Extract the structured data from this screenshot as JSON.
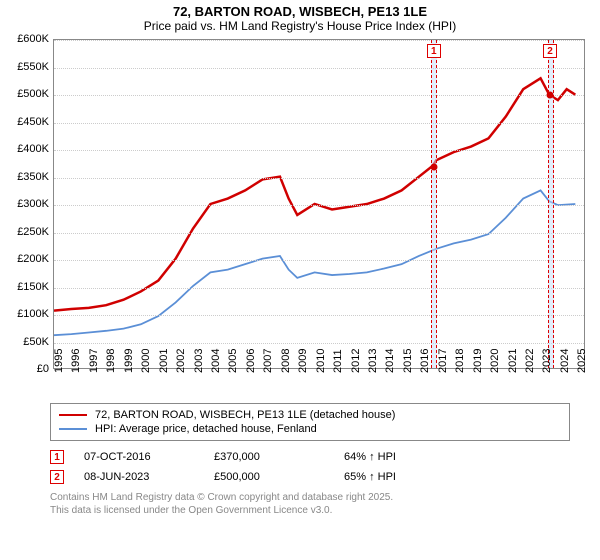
{
  "title": "72, BARTON ROAD, WISBECH, PE13 1LE",
  "subtitle": "Price paid vs. HM Land Registry's House Price Index (HPI)",
  "chart": {
    "type": "line",
    "ylim": [
      0,
      600000
    ],
    "ytick_step": 50000,
    "yticks": [
      "£0",
      "£50K",
      "£100K",
      "£150K",
      "£200K",
      "£250K",
      "£300K",
      "£350K",
      "£400K",
      "£450K",
      "£500K",
      "£550K",
      "£600K"
    ],
    "xlim": [
      1995,
      2025.5
    ],
    "xticks": [
      1995,
      1996,
      1997,
      1998,
      1999,
      2000,
      2001,
      2002,
      2003,
      2004,
      2005,
      2006,
      2007,
      2008,
      2009,
      2010,
      2011,
      2012,
      2013,
      2014,
      2015,
      2016,
      2017,
      2018,
      2019,
      2020,
      2021,
      2022,
      2023,
      2024,
      2025
    ],
    "grid_color": "#cccccc",
    "background_color": "#ffffff",
    "series": [
      {
        "name": "72, BARTON ROAD, WISBECH, PE13 1LE (detached house)",
        "color": "#d00000",
        "width": 2.5,
        "data": [
          [
            1995,
            105000
          ],
          [
            1996,
            108000
          ],
          [
            1997,
            110000
          ],
          [
            1998,
            115000
          ],
          [
            1999,
            125000
          ],
          [
            2000,
            140000
          ],
          [
            2001,
            160000
          ],
          [
            2002,
            200000
          ],
          [
            2003,
            255000
          ],
          [
            2004,
            300000
          ],
          [
            2005,
            310000
          ],
          [
            2006,
            325000
          ],
          [
            2007,
            345000
          ],
          [
            2008,
            350000
          ],
          [
            2008.5,
            310000
          ],
          [
            2009,
            280000
          ],
          [
            2010,
            300000
          ],
          [
            2011,
            290000
          ],
          [
            2012,
            295000
          ],
          [
            2013,
            300000
          ],
          [
            2014,
            310000
          ],
          [
            2015,
            325000
          ],
          [
            2016,
            350000
          ],
          [
            2016.8,
            370000
          ],
          [
            2017,
            380000
          ],
          [
            2018,
            395000
          ],
          [
            2019,
            405000
          ],
          [
            2020,
            420000
          ],
          [
            2021,
            460000
          ],
          [
            2022,
            510000
          ],
          [
            2023,
            530000
          ],
          [
            2023.5,
            500000
          ],
          [
            2024,
            490000
          ],
          [
            2024.5,
            510000
          ],
          [
            2025,
            500000
          ]
        ]
      },
      {
        "name": "HPI: Average price, detached house, Fenland",
        "color": "#5b8fd6",
        "width": 1.8,
        "data": [
          [
            1995,
            60000
          ],
          [
            1996,
            62000
          ],
          [
            1997,
            65000
          ],
          [
            1998,
            68000
          ],
          [
            1999,
            72000
          ],
          [
            2000,
            80000
          ],
          [
            2001,
            95000
          ],
          [
            2002,
            120000
          ],
          [
            2003,
            150000
          ],
          [
            2004,
            175000
          ],
          [
            2005,
            180000
          ],
          [
            2006,
            190000
          ],
          [
            2007,
            200000
          ],
          [
            2008,
            205000
          ],
          [
            2008.5,
            180000
          ],
          [
            2009,
            165000
          ],
          [
            2010,
            175000
          ],
          [
            2011,
            170000
          ],
          [
            2012,
            172000
          ],
          [
            2013,
            175000
          ],
          [
            2014,
            182000
          ],
          [
            2015,
            190000
          ],
          [
            2016,
            205000
          ],
          [
            2017,
            218000
          ],
          [
            2018,
            228000
          ],
          [
            2019,
            235000
          ],
          [
            2020,
            245000
          ],
          [
            2021,
            275000
          ],
          [
            2022,
            310000
          ],
          [
            2023,
            325000
          ],
          [
            2023.5,
            305000
          ],
          [
            2024,
            298000
          ],
          [
            2025,
            300000
          ]
        ]
      }
    ],
    "highlights": [
      {
        "from": 2016.6,
        "to": 2016.95
      },
      {
        "from": 2023.3,
        "to": 2023.65
      }
    ],
    "markers": [
      {
        "n": "1",
        "x": 2016.77,
        "y": 370000,
        "color": "#d00000"
      },
      {
        "n": "2",
        "x": 2023.44,
        "y": 500000,
        "color": "#d00000"
      }
    ]
  },
  "legend": {
    "items": [
      {
        "color": "#d00000",
        "label": "72, BARTON ROAD, WISBECH, PE13 1LE (detached house)"
      },
      {
        "color": "#5b8fd6",
        "label": "HPI: Average price, detached house, Fenland"
      }
    ]
  },
  "events": [
    {
      "n": "1",
      "date": "07-OCT-2016",
      "price": "£370,000",
      "delta": "64% ↑ HPI"
    },
    {
      "n": "2",
      "date": "08-JUN-2023",
      "price": "£500,000",
      "delta": "65% ↑ HPI"
    }
  ],
  "footer": [
    "Contains HM Land Registry data © Crown copyright and database right 2025.",
    "This data is licensed under the Open Government Licence v3.0."
  ]
}
